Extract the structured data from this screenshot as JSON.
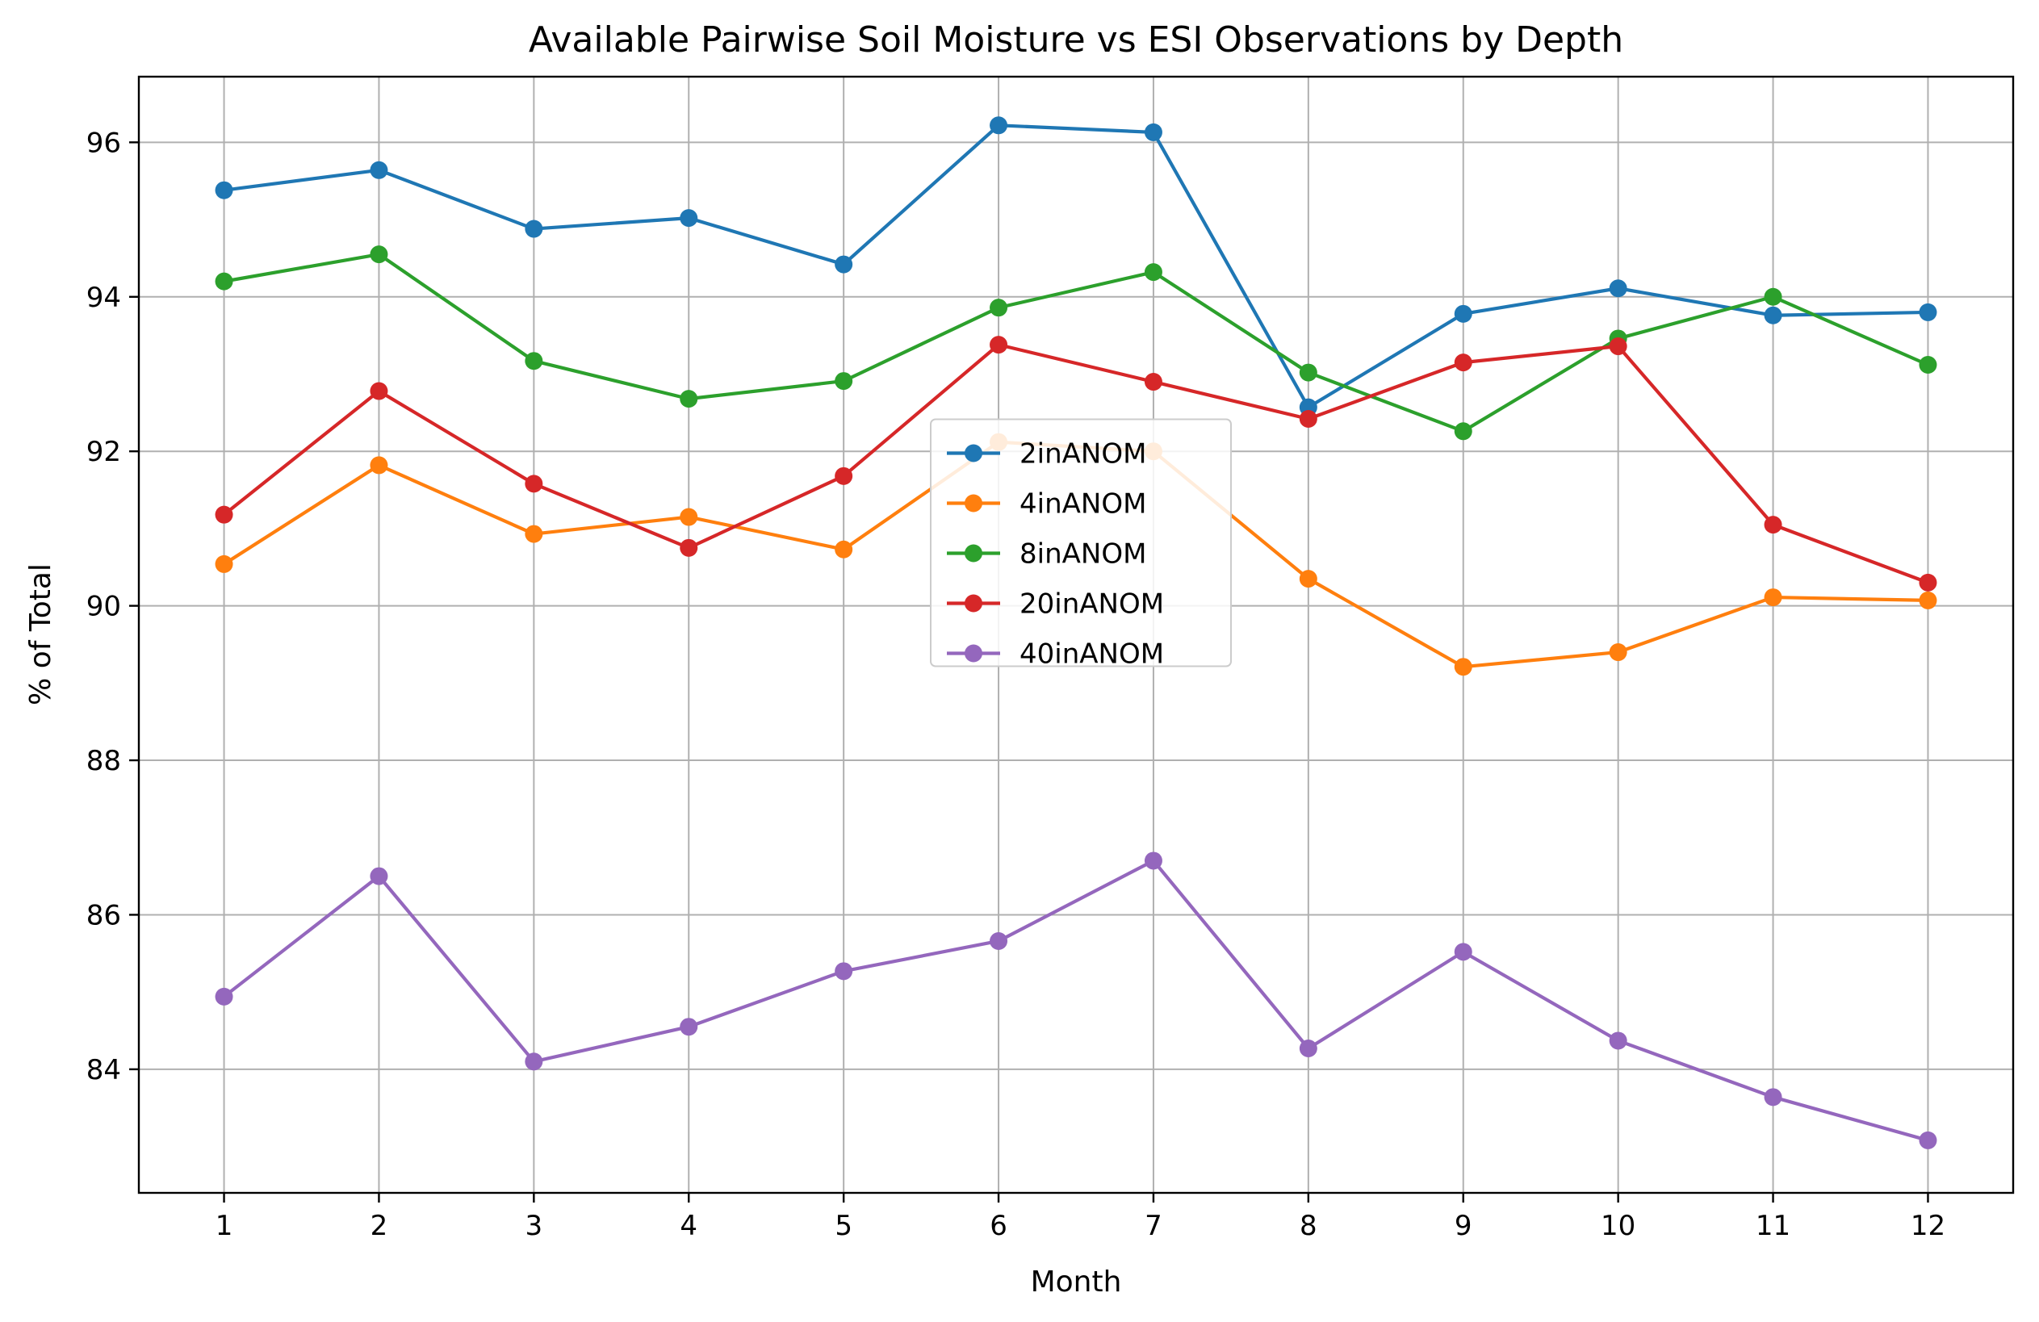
{
  "chart_data": {
    "type": "line",
    "title": "Available Pairwise Soil Moisture vs ESI Observations by Depth",
    "xlabel": "Month",
    "ylabel": "% of Total",
    "x": [
      1,
      2,
      3,
      4,
      5,
      6,
      7,
      8,
      9,
      10,
      11,
      12
    ],
    "xticks": [
      "1",
      "2",
      "3",
      "4",
      "5",
      "6",
      "7",
      "8",
      "9",
      "10",
      "11",
      "12"
    ],
    "yticks": [
      84,
      86,
      88,
      90,
      92,
      94,
      96
    ],
    "ytick_labels": [
      "84",
      "86",
      "88",
      "90",
      "92",
      "94",
      "96"
    ],
    "xlim": [
      0.45,
      12.55
    ],
    "ylim": [
      82.4,
      96.85
    ],
    "grid": true,
    "legend_position": "center",
    "series": [
      {
        "name": "2inANOM",
        "color": "#1f77b4",
        "values": [
          95.38,
          95.64,
          94.88,
          95.02,
          94.42,
          96.22,
          96.13,
          92.57,
          93.78,
          94.11,
          93.76,
          93.8
        ]
      },
      {
        "name": "4inANOM",
        "color": "#ff7f0e",
        "values": [
          90.54,
          91.82,
          90.93,
          91.15,
          90.73,
          92.12,
          92.0,
          90.35,
          89.21,
          89.4,
          90.11,
          90.07
        ]
      },
      {
        "name": "8inANOM",
        "color": "#2ca02c",
        "values": [
          94.2,
          94.55,
          93.17,
          92.68,
          92.91,
          93.86,
          94.32,
          93.02,
          92.26,
          93.46,
          94.0,
          93.12
        ]
      },
      {
        "name": "20inANOM",
        "color": "#d62728",
        "values": [
          91.18,
          92.78,
          91.58,
          90.75,
          91.68,
          93.38,
          92.9,
          92.42,
          93.15,
          93.36,
          91.05,
          90.3
        ]
      },
      {
        "name": "40inANOM",
        "color": "#9467bd",
        "values": [
          84.94,
          86.5,
          84.1,
          84.55,
          85.27,
          85.66,
          86.7,
          84.27,
          85.52,
          84.37,
          83.64,
          83.08
        ]
      }
    ]
  }
}
